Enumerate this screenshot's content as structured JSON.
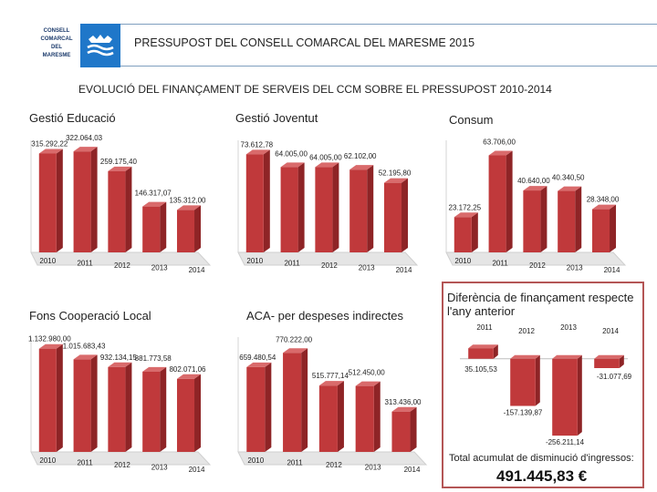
{
  "header": {
    "logo_lines": [
      "CONSELL",
      "COMARCAL",
      "DEL",
      "MARESME"
    ],
    "title": "PRESSUPOST DEL CONSELL COMARCAL DEL MARESME 2015"
  },
  "subtitle": "EVOLUCIÓ DEL FINANÇAMENT DE SERVEIS DEL CCM SOBRE EL PRESSUPOST 2010-2014",
  "colors": {
    "bar_front": "#c0393b",
    "bar_side": "#8e2426",
    "bar_top": "#d96a6b",
    "floor": "#e5e5e5",
    "box_border": "#b45555"
  },
  "chart_data": [
    {
      "type": "bar",
      "title": "Gestió Educació",
      "categories": [
        "2010",
        "2011",
        "2012",
        "2013",
        "2014"
      ],
      "values": [
        315292.22,
        322064.03,
        259175.4,
        146317.07,
        135312.0
      ],
      "value_labels": [
        "315.292,22",
        "322.064,03",
        "259.175,40",
        "146.317,07",
        "135.312,00"
      ],
      "ylim": [
        0,
        340000
      ]
    },
    {
      "type": "bar",
      "title": "Gestió Joventut",
      "categories": [
        "2010",
        "2011",
        "2012",
        "2013",
        "2014"
      ],
      "values": [
        73612.78,
        64005.0,
        64005.0,
        62102.0,
        52195.8
      ],
      "value_labels": [
        "73.612,78",
        "64.005,00",
        "64.005,00",
        "62.102,00",
        "52.195,80"
      ],
      "ylim": [
        0,
        80000
      ]
    },
    {
      "type": "bar",
      "title": "Consum",
      "categories": [
        "2010",
        "2011",
        "2012",
        "2013",
        "2014"
      ],
      "values": [
        23172.25,
        63706.0,
        40640.0,
        40340.5,
        28348.0
      ],
      "value_labels": [
        "23.172,25",
        "63.706,00",
        "40.640,00",
        "40.340,50",
        "28.348,00"
      ],
      "ylim": [
        0,
        70000
      ]
    },
    {
      "type": "bar",
      "title": "Fons Cooperació Local",
      "categories": [
        "2010",
        "2011",
        "2012",
        "2013",
        "2014"
      ],
      "values": [
        1132980.0,
        1015683.43,
        932134.15,
        881773.58,
        802071.06
      ],
      "value_labels": [
        "1.132.980,00",
        "1.015.683,43",
        "932.134,15",
        "881.773,58",
        "802.071,06"
      ],
      "ylim": [
        0,
        1200000
      ]
    },
    {
      "type": "bar",
      "title": "ACA- per despeses indirectes",
      "categories": [
        "2010",
        "2011",
        "2012",
        "2013",
        "2014"
      ],
      "values": [
        659480.54,
        770222.0,
        515777.14,
        512450.0,
        313436.0
      ],
      "value_labels": [
        "659.480,54",
        "770.222,00",
        "515.777,14",
        "512.450,00",
        "313.436,00"
      ],
      "ylim": [
        0,
        850000
      ]
    },
    {
      "type": "bar",
      "title": "Diferència de finançament respecte l'any anterior",
      "categories": [
        "2011",
        "2012",
        "2013",
        "2014"
      ],
      "values": [
        35105.53,
        -157139.87,
        -256211.14,
        -31077.69
      ],
      "value_labels": [
        "35.105,53",
        "-157.139,87",
        "-256.211,14",
        "-31.077,69"
      ],
      "ylim": [
        -280000,
        60000
      ]
    }
  ],
  "summary": {
    "total_label": "Total acumulat de disminució d'ingressos:",
    "total_value": "491.445,83 €"
  }
}
